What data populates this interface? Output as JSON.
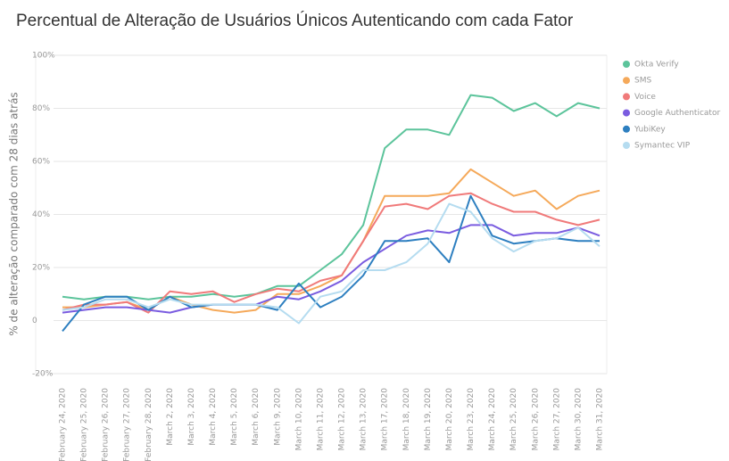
{
  "chart_data": {
    "type": "line",
    "title": "Percentual de Alteração de Usuários Únicos Autenticando com cada Fator",
    "y_label": "% de alteração comparado com 28 dias atrás",
    "categories": [
      "February 24, 2020",
      "February 25, 2020",
      "February 26, 2020",
      "February 27, 2020",
      "February 28, 2020",
      "March 2, 2020",
      "March 3, 2020",
      "March 4, 2020",
      "March 5, 2020",
      "March 6, 2020",
      "March 9, 2020",
      "March 10, 2020",
      "March 11, 2020",
      "March 12, 2020",
      "March 13, 2020",
      "March 17, 2020",
      "March 18, 2020",
      "March 19, 2020",
      "March 20, 2020",
      "March 23, 2020",
      "March 24, 2020",
      "March 25, 2020",
      "March 26, 2020",
      "March 27, 2020",
      "March 30, 2020",
      "March 31, 2020"
    ],
    "series": [
      {
        "name": "Okta Verify",
        "color": "#5cc49b",
        "values": [
          9,
          8,
          9,
          9,
          8,
          9,
          9,
          10,
          9,
          10,
          13,
          13,
          19,
          25,
          36,
          65,
          72,
          72,
          70,
          85,
          84,
          79,
          82,
          77,
          82,
          80
        ]
      },
      {
        "name": "SMS",
        "color": "#f5a95a",
        "values": [
          5,
          5,
          6,
          7,
          4,
          9,
          6,
          4,
          3,
          4,
          10,
          10,
          13,
          17,
          30,
          47,
          47,
          47,
          48,
          57,
          52,
          47,
          49,
          42,
          47,
          49
        ]
      },
      {
        "name": "Voice",
        "color": "#f07a7a",
        "values": [
          4,
          6,
          6,
          7,
          3,
          11,
          10,
          11,
          7,
          10,
          12,
          11,
          15,
          17,
          30,
          43,
          44,
          42,
          47,
          48,
          44,
          41,
          41,
          38,
          36,
          38
        ]
      },
      {
        "name": "Google Authenticator",
        "color": "#7a5ce0",
        "values": [
          3,
          4,
          5,
          5,
          4,
          3,
          5,
          6,
          6,
          6,
          9,
          8,
          11,
          15,
          22,
          27,
          32,
          34,
          33,
          36,
          36,
          32,
          33,
          33,
          35,
          32
        ]
      },
      {
        "name": "YubiKey",
        "color": "#2d7fc0",
        "values": [
          -4,
          6,
          9,
          9,
          4,
          9,
          5,
          6,
          6,
          6,
          4,
          14,
          5,
          9,
          17,
          30,
          30,
          31,
          22,
          47,
          32,
          29,
          30,
          31,
          30,
          30
        ]
      },
      {
        "name": "Symantec VIP",
        "color": "#b5dcf0",
        "values": [
          4,
          5,
          8,
          8,
          5,
          8,
          6,
          6,
          6,
          6,
          5,
          -1,
          9,
          11,
          19,
          19,
          22,
          29,
          44,
          41,
          31,
          26,
          30,
          31,
          35,
          28
        ]
      }
    ],
    "ylim": [
      -20,
      100
    ],
    "yticks": [
      {
        "value": -20,
        "label": "-20%"
      },
      0,
      {
        "value": 20,
        "label": "20%"
      },
      {
        "value": 40,
        "label": "40%"
      },
      {
        "value": 60,
        "label": "60%"
      },
      {
        "value": 80,
        "label": "80%"
      },
      {
        "value": 100,
        "label": "100%"
      }
    ],
    "grid": true,
    "legend": "right"
  }
}
